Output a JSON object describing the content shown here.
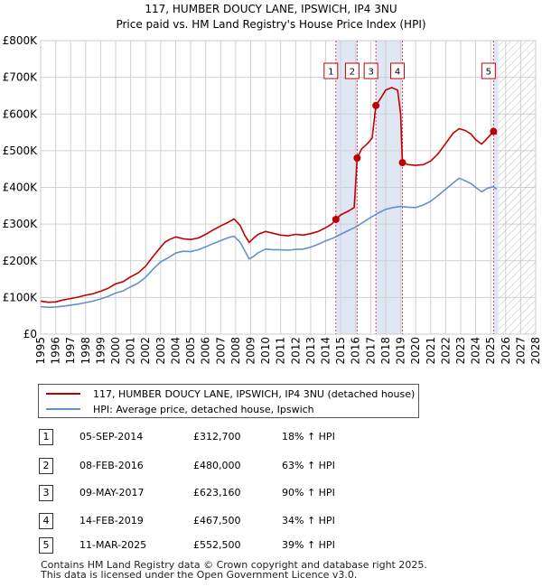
{
  "colors": {
    "property": "#c00000",
    "hpi": "#6690cc",
    "band": "#dfe7f4",
    "marker_line": "#d04060",
    "grid": "#d0d0d0"
  },
  "chart_data": {
    "type": "line",
    "title": "117, HUMBER DOUCY LANE, IPSWICH, IP4 3NU",
    "subtitle": "Price paid vs. HM Land Registry's House Price Index (HPI)",
    "x_range": [
      1995,
      2028
    ],
    "ylim": [
      0,
      800000
    ],
    "y_ticks": [
      {
        "value": 0,
        "label": "£0"
      },
      {
        "value": 100000,
        "label": "£100K"
      },
      {
        "value": 200000,
        "label": "£200K"
      },
      {
        "value": 300000,
        "label": "£300K"
      },
      {
        "value": 400000,
        "label": "£400K"
      },
      {
        "value": 500000,
        "label": "£500K"
      },
      {
        "value": 600000,
        "label": "£600K"
      },
      {
        "value": 700000,
        "label": "£700K"
      },
      {
        "value": 800000,
        "label": "£800K"
      }
    ],
    "x_ticks": [
      "1995",
      "1996",
      "1997",
      "1998",
      "1999",
      "2000",
      "2001",
      "2002",
      "2003",
      "2004",
      "2005",
      "2006",
      "2007",
      "2008",
      "2009",
      "2010",
      "2011",
      "2012",
      "2013",
      "2014",
      "2015",
      "2016",
      "2017",
      "2018",
      "2019",
      "2020",
      "2021",
      "2022",
      "2023",
      "2024",
      "2025",
      "2026",
      "2027",
      "2028"
    ],
    "projection_start": 2025.5,
    "shaded_periods": [
      [
        2014.68,
        2016.1
      ],
      [
        2017.35,
        2019.12
      ],
      [
        2025.19,
        2025.5
      ]
    ],
    "series": [
      {
        "name": "117, HUMBER DOUCY LANE, IPSWICH, IP4 3NU (detached house)",
        "color_key": "property",
        "x": [
          1995.0,
          1995.5,
          1996.0,
          1996.5,
          1997.0,
          1997.5,
          1998.0,
          1998.5,
          1999.0,
          1999.5,
          2000.0,
          2000.5,
          2001.0,
          2001.5,
          2002.0,
          2002.5,
          2003.0,
          2003.3,
          2003.6,
          2004.0,
          2004.5,
          2005.0,
          2005.5,
          2006.0,
          2006.5,
          2007.0,
          2007.5,
          2007.9,
          2008.3,
          2008.6,
          2008.9,
          2009.2,
          2009.5,
          2010.0,
          2010.5,
          2011.0,
          2011.5,
          2012.0,
          2012.5,
          2013.0,
          2013.5,
          2014.0,
          2014.4,
          2014.68,
          2015.0,
          2015.5,
          2015.9,
          2016.1,
          2016.4,
          2016.8,
          2017.1,
          2017.35,
          2017.7,
          2018.0,
          2018.4,
          2018.8,
          2019.0,
          2019.12,
          2019.5,
          2020.0,
          2020.5,
          2021.0,
          2021.5,
          2022.0,
          2022.5,
          2022.9,
          2023.3,
          2023.7,
          2024.0,
          2024.4,
          2024.8,
          2025.19,
          2025.4
        ],
        "y": [
          90000,
          87000,
          88000,
          93000,
          97000,
          101000,
          106000,
          110000,
          117000,
          125000,
          137000,
          143000,
          156000,
          167000,
          185000,
          212000,
          237000,
          251000,
          258000,
          265000,
          260000,
          258000,
          262000,
          272000,
          284000,
          295000,
          305000,
          314000,
          296000,
          270000,
          250000,
          262000,
          272000,
          280000,
          275000,
          270000,
          268000,
          272000,
          270000,
          274000,
          280000,
          290000,
          300000,
          312700,
          325000,
          335000,
          345000,
          480000,
          505000,
          520000,
          535000,
          623160,
          645000,
          665000,
          672000,
          665000,
          600000,
          467500,
          462000,
          460000,
          462000,
          472000,
          492000,
          520000,
          548000,
          560000,
          555000,
          545000,
          530000,
          518000,
          535000,
          552500,
          545000
        ]
      },
      {
        "name": "HPI: Average price, detached house, Ipswich",
        "color_key": "hpi",
        "x": [
          1995.0,
          1995.5,
          1996.0,
          1996.5,
          1997.0,
          1997.5,
          1998.0,
          1998.5,
          1999.0,
          1999.5,
          2000.0,
          2000.5,
          2001.0,
          2001.5,
          2002.0,
          2002.5,
          2003.0,
          2003.5,
          2004.0,
          2004.5,
          2005.0,
          2005.5,
          2006.0,
          2006.5,
          2007.0,
          2007.5,
          2007.9,
          2008.3,
          2008.6,
          2008.9,
          2009.2,
          2009.5,
          2010.0,
          2010.5,
          2011.0,
          2011.5,
          2012.0,
          2012.5,
          2013.0,
          2013.5,
          2014.0,
          2014.5,
          2015.0,
          2015.5,
          2016.0,
          2016.5,
          2017.0,
          2017.5,
          2018.0,
          2018.5,
          2019.0,
          2019.5,
          2020.0,
          2020.5,
          2021.0,
          2021.5,
          2022.0,
          2022.5,
          2022.9,
          2023.3,
          2023.7,
          2024.0,
          2024.4,
          2024.8,
          2025.19,
          2025.4
        ],
        "y": [
          75000,
          73000,
          74000,
          76000,
          79000,
          82000,
          86000,
          90000,
          96000,
          103000,
          112000,
          118000,
          129000,
          139000,
          155000,
          177000,
          197000,
          208000,
          221000,
          226000,
          225000,
          230000,
          238000,
          247000,
          255000,
          263000,
          267000,
          250000,
          228000,
          205000,
          212000,
          222000,
          232000,
          230000,
          230000,
          229000,
          231000,
          232000,
          237000,
          245000,
          254000,
          262000,
          272000,
          282000,
          292000,
          305000,
          318000,
          330000,
          340000,
          345000,
          348000,
          346000,
          345000,
          352000,
          362000,
          378000,
          395000,
          412000,
          425000,
          418000,
          410000,
          400000,
          388000,
          398000,
          402000,
          395000
        ]
      }
    ],
    "sales": [
      {
        "num": "1",
        "date": "05-SEP-2014",
        "year": 2014.68,
        "price": 312700,
        "price_label": "£312,700",
        "hpi": "18% ↑ HPI"
      },
      {
        "num": "2",
        "date": "08-FEB-2016",
        "year": 2016.1,
        "price": 480000,
        "price_label": "£480,000",
        "hpi": "63% ↑ HPI"
      },
      {
        "num": "3",
        "date": "09-MAY-2017",
        "year": 2017.35,
        "price": 623160,
        "price_label": "£623,160",
        "hpi": "90% ↑ HPI"
      },
      {
        "num": "4",
        "date": "14-FEB-2019",
        "year": 2019.12,
        "price": 467500,
        "price_label": "£467,500",
        "hpi": "34% ↑ HPI"
      },
      {
        "num": "5",
        "date": "11-MAR-2025",
        "year": 2025.19,
        "price": 552500,
        "price_label": "£552,500",
        "hpi": "39% ↑ HPI"
      }
    ]
  },
  "legend": {
    "property_label": "117, HUMBER DOUCY LANE, IPSWICH, IP4 3NU (detached house)",
    "hpi_label": "HPI: Average price, detached house, Ipswich"
  },
  "footer": {
    "line1": "Contains HM Land Registry data © Crown copyright and database right 2025.",
    "line2": "This data is licensed under the Open Government Licence v3.0."
  }
}
